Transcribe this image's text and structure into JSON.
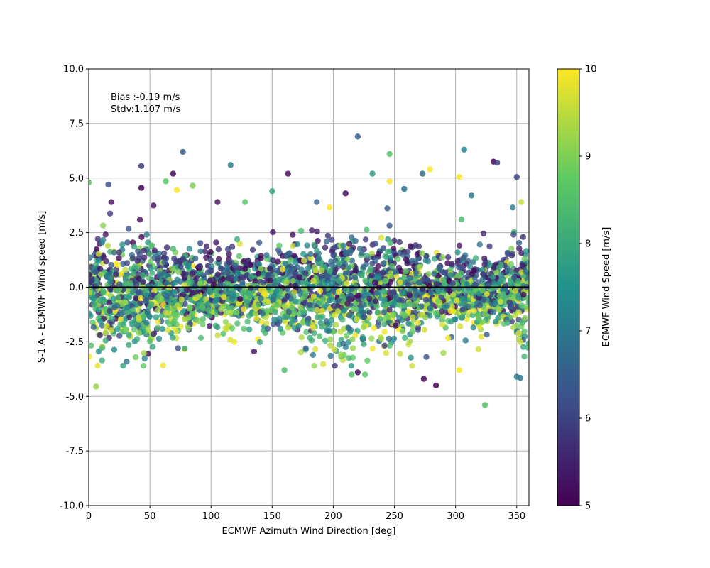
{
  "chart_data": {
    "type": "scatter",
    "xlabel": "ECMWF Azimuth Wind Direction [deg]",
    "ylabel": "S-1 A - ECMWF Wind speed [m/s]",
    "xlim": [
      0,
      360
    ],
    "ylim": [
      -10,
      10
    ],
    "xticks": [
      0,
      50,
      100,
      150,
      200,
      250,
      300,
      350
    ],
    "yticks": [
      -10.0,
      -7.5,
      -5.0,
      -2.5,
      0.0,
      2.5,
      5.0,
      7.5,
      10.0
    ],
    "grid": true,
    "zero_line": 0,
    "annotations": [
      "Bias :-0.19 m/s",
      "Stdv:1.107 m/s"
    ],
    "colorbar": {
      "label": "ECMWF Wind Speed [m/s]",
      "range": [
        5,
        10
      ],
      "ticks": [
        5,
        6,
        7,
        8,
        9,
        10
      ],
      "colormap": "viridis"
    },
    "point_count": 3200,
    "colors": {
      "zero_line": "#000000",
      "grid": "#b0b0b0",
      "viridis_stops": [
        "#440154",
        "#3b528b",
        "#21918c",
        "#5ec962",
        "#fde725"
      ]
    },
    "outliers": [
      {
        "x": 0,
        "y": 4.8,
        "c": 8.6
      },
      {
        "x": 6,
        "y": -4.55,
        "c": 9.2
      },
      {
        "x": 16,
        "y": 4.7,
        "c": 6.2
      },
      {
        "x": 43,
        "y": 5.55,
        "c": 6.0
      },
      {
        "x": 43,
        "y": 4.55,
        "c": 5.0
      },
      {
        "x": 63,
        "y": 4.85,
        "c": 8.7
      },
      {
        "x": 69,
        "y": 5.2,
        "c": 5.2
      },
      {
        "x": 72,
        "y": 4.45,
        "c": 10.0
      },
      {
        "x": 77,
        "y": 6.2,
        "c": 6.5
      },
      {
        "x": 85,
        "y": 4.65,
        "c": 9.0
      },
      {
        "x": 116,
        "y": 5.6,
        "c": 7.0
      },
      {
        "x": 150,
        "y": 4.4,
        "c": 8.0
      },
      {
        "x": 163,
        "y": 5.2,
        "c": 5.2
      },
      {
        "x": 197,
        "y": 3.65,
        "c": 10.0
      },
      {
        "x": 210,
        "y": 4.3,
        "c": 5.1
      },
      {
        "x": 220,
        "y": 6.9,
        "c": 6.5
      },
      {
        "x": 232,
        "y": 5.2,
        "c": 7.8
      },
      {
        "x": 246,
        "y": 6.1,
        "c": 8.6
      },
      {
        "x": 246,
        "y": 4.85,
        "c": 10.0
      },
      {
        "x": 258,
        "y": 4.5,
        "c": 7.0
      },
      {
        "x": 273,
        "y": 5.2,
        "c": 6.8
      },
      {
        "x": 279,
        "y": 5.4,
        "c": 10.0
      },
      {
        "x": 303,
        "y": 5.05,
        "c": 10.0
      },
      {
        "x": 307,
        "y": 6.3,
        "c": 7.2
      },
      {
        "x": 313,
        "y": 4.2,
        "c": 7.0
      },
      {
        "x": 331,
        "y": 5.75,
        "c": 5.0
      },
      {
        "x": 334,
        "y": 5.7,
        "c": 6.0
      },
      {
        "x": 350,
        "y": 5.05,
        "c": 6.0
      },
      {
        "x": 274,
        "y": -4.2,
        "c": 5.1
      },
      {
        "x": 284,
        "y": -4.5,
        "c": 5.0
      },
      {
        "x": 324,
        "y": -5.4,
        "c": 8.6
      },
      {
        "x": 350,
        "y": -4.1,
        "c": 7.0
      },
      {
        "x": 353,
        "y": -4.15,
        "c": 7.0
      },
      {
        "x": 303,
        "y": -3.8,
        "c": 10.0
      },
      {
        "x": 160,
        "y": -3.8,
        "c": 8.5
      },
      {
        "x": 220,
        "y": -3.9,
        "c": 5.2
      },
      {
        "x": 215,
        "y": -4.0,
        "c": 8.5
      },
      {
        "x": 226,
        "y": -4.0,
        "c": 8.7
      }
    ]
  }
}
